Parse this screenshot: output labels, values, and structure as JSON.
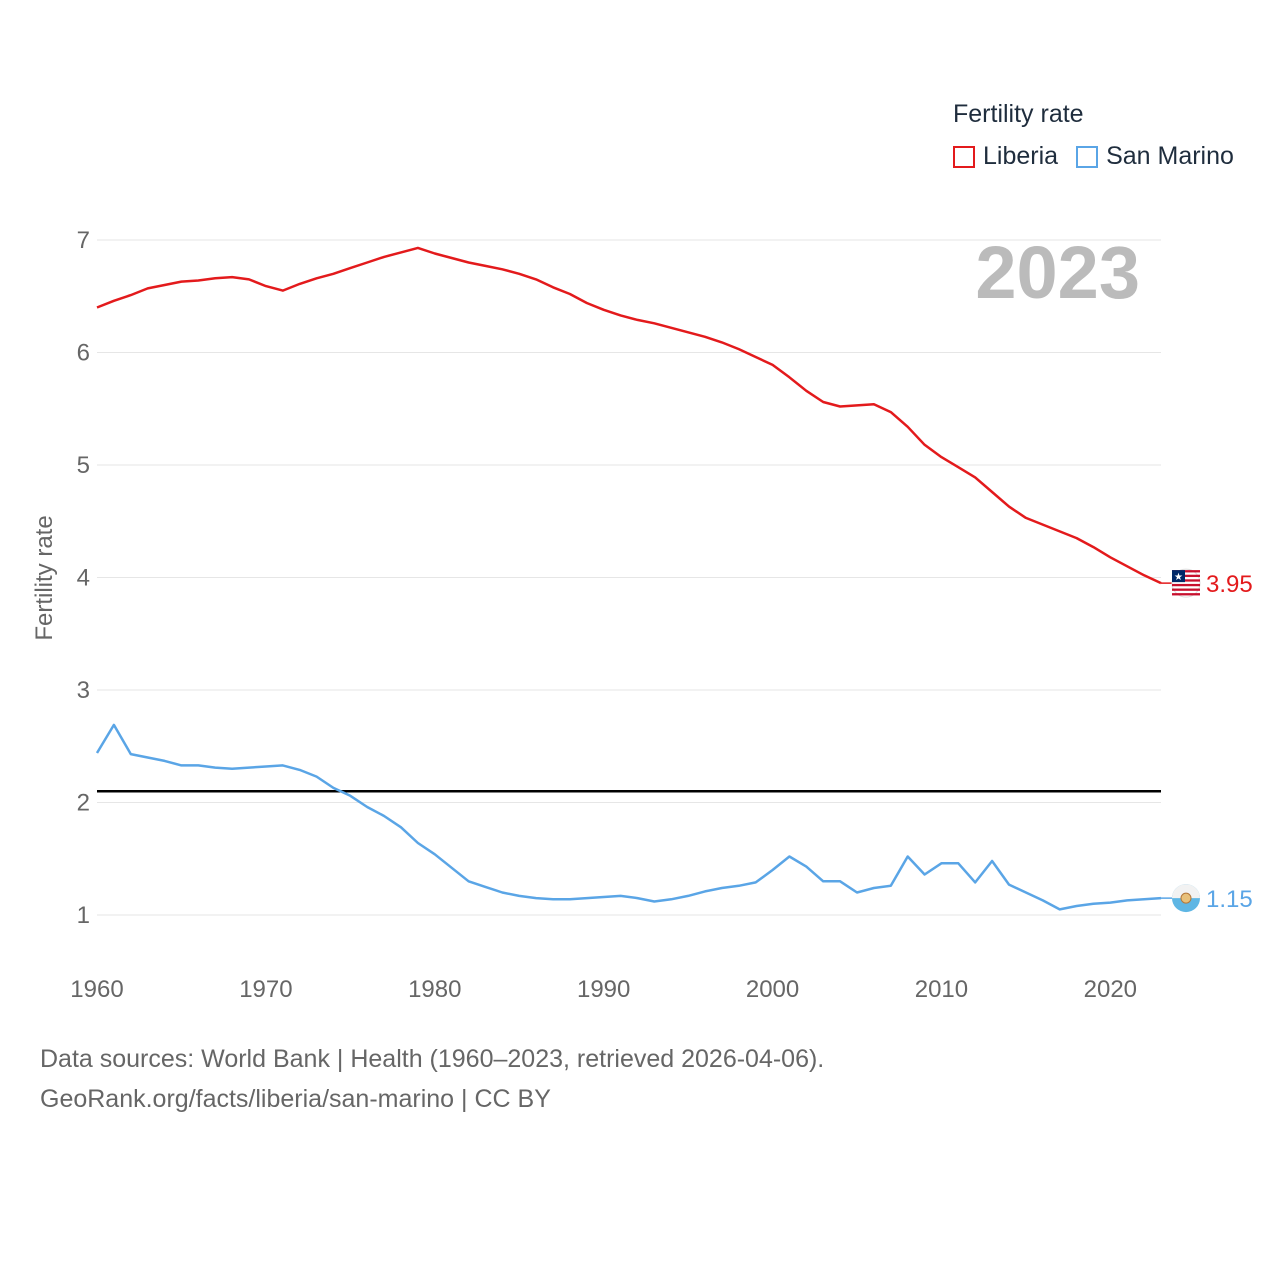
{
  "legend": {
    "title": "Fertility rate"
  },
  "footer": {
    "line1": "Data sources: World Bank | Health (1960–2023, retrieved 2026-04-06).",
    "line2": "GeoRank.org/facts/liberia/san-marino | CC BY"
  },
  "chart_data": {
    "type": "line",
    "title": "Fertility rate",
    "ylabel": "Fertility rate",
    "xlabel": "",
    "year_watermark": "2023",
    "xlim": [
      1960,
      2023
    ],
    "ylim": [
      0.5,
      7.2
    ],
    "xticks": [
      1960,
      1970,
      1980,
      1990,
      2000,
      2010,
      2020
    ],
    "yticks": [
      1,
      2,
      3,
      4,
      5,
      6,
      7
    ],
    "reference_line": {
      "value": 2.1,
      "color": "#000000"
    },
    "x": [
      1960,
      1961,
      1962,
      1963,
      1964,
      1965,
      1966,
      1967,
      1968,
      1969,
      1970,
      1971,
      1972,
      1973,
      1974,
      1975,
      1976,
      1977,
      1978,
      1979,
      1980,
      1981,
      1982,
      1983,
      1984,
      1985,
      1986,
      1987,
      1988,
      1989,
      1990,
      1991,
      1992,
      1993,
      1994,
      1995,
      1996,
      1997,
      1998,
      1999,
      2000,
      2001,
      2002,
      2003,
      2004,
      2005,
      2006,
      2007,
      2008,
      2009,
      2010,
      2011,
      2012,
      2013,
      2014,
      2015,
      2016,
      2017,
      2018,
      2019,
      2020,
      2021,
      2022,
      2023
    ],
    "series": [
      {
        "name": "Liberia",
        "color": "#e31a1c",
        "end_label": "3.95",
        "flag_icon": "liberia-flag-icon",
        "values": [
          6.4,
          6.46,
          6.51,
          6.57,
          6.6,
          6.63,
          6.64,
          6.66,
          6.67,
          6.65,
          6.59,
          6.55,
          6.61,
          6.66,
          6.7,
          6.75,
          6.8,
          6.85,
          6.89,
          6.93,
          6.88,
          6.84,
          6.8,
          6.77,
          6.74,
          6.7,
          6.65,
          6.58,
          6.52,
          6.44,
          6.38,
          6.33,
          6.29,
          6.26,
          6.22,
          6.18,
          6.14,
          6.09,
          6.03,
          5.96,
          5.89,
          5.78,
          5.66,
          5.56,
          5.52,
          5.53,
          5.54,
          5.47,
          5.34,
          5.18,
          5.07,
          4.98,
          4.89,
          4.76,
          4.63,
          4.53,
          4.47,
          4.41,
          4.35,
          4.27,
          4.18,
          4.1,
          4.02,
          3.95
        ]
      },
      {
        "name": "San Marino",
        "color": "#5aa5e6",
        "end_label": "1.15",
        "flag_icon": "san-marino-flag-icon",
        "values": [
          2.44,
          2.69,
          2.43,
          2.4,
          2.37,
          2.33,
          2.33,
          2.31,
          2.3,
          2.31,
          2.32,
          2.33,
          2.29,
          2.23,
          2.13,
          2.06,
          1.96,
          1.88,
          1.78,
          1.64,
          1.54,
          1.42,
          1.3,
          1.25,
          1.2,
          1.17,
          1.15,
          1.14,
          1.14,
          1.15,
          1.16,
          1.17,
          1.15,
          1.12,
          1.14,
          1.17,
          1.21,
          1.24,
          1.26,
          1.29,
          1.4,
          1.52,
          1.43,
          1.3,
          1.3,
          1.2,
          1.24,
          1.26,
          1.52,
          1.36,
          1.46,
          1.46,
          1.29,
          1.48,
          1.27,
          1.2,
          1.13,
          1.05,
          1.08,
          1.1,
          1.11,
          1.13,
          1.14,
          1.15
        ]
      }
    ]
  }
}
